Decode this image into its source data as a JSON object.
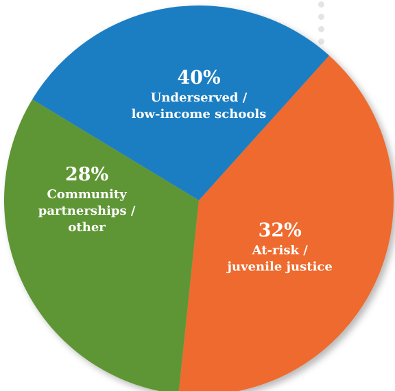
{
  "chart_data": {
    "type": "pie",
    "title": "",
    "slices": [
      {
        "label": "Underserved / low-income schools",
        "label_lines": [
          "Underserved /",
          "low-income schools"
        ],
        "value": 40,
        "value_label": "40%",
        "color": "#ee6a2d"
      },
      {
        "label": "At-risk / juvenile justice",
        "label_lines": [
          "At-risk /",
          "juvenile justice"
        ],
        "value": 32,
        "value_label": "32%",
        "color": "#5f9634"
      },
      {
        "label": "Community partnerships / other",
        "label_lines": [
          "Community",
          "partnerships /",
          "other"
        ],
        "value": 28,
        "value_label": "28%",
        "color": "#1b7ec2"
      }
    ]
  }
}
